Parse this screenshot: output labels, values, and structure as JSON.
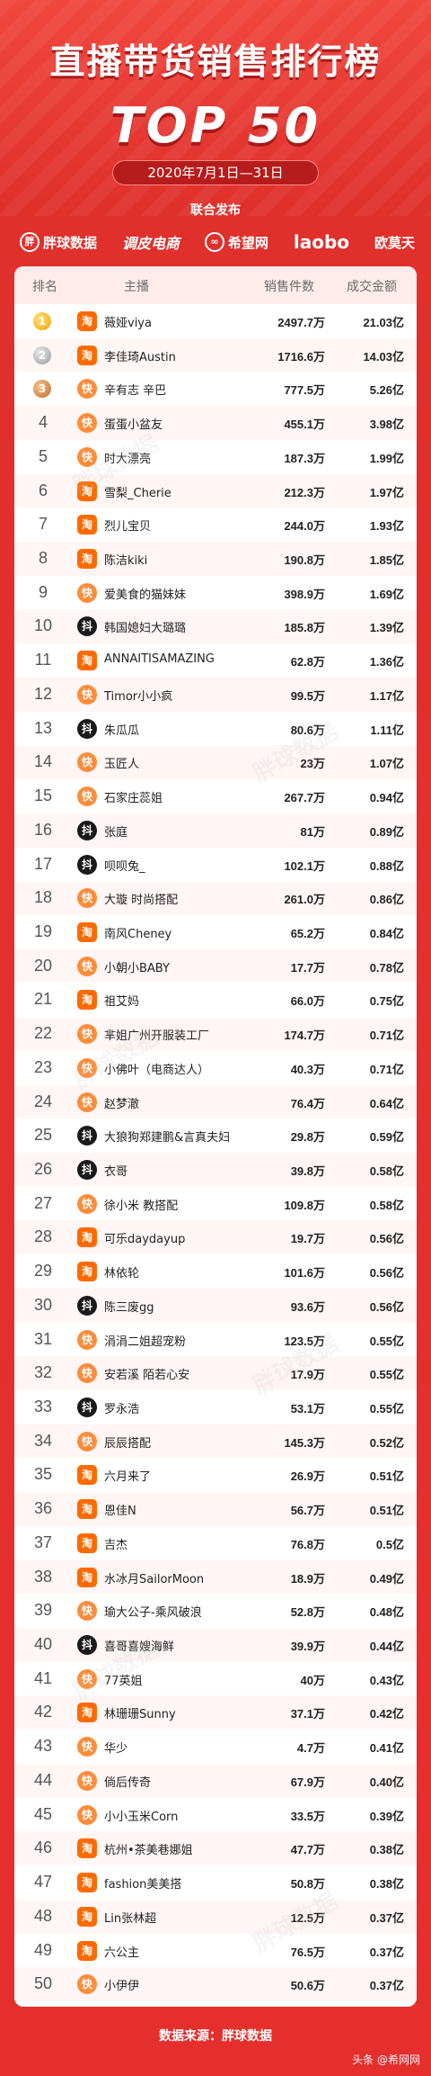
{
  "title": "直播带货销售排行榜",
  "subtitle": "TOP 50",
  "date_range": "2020年7月1日—31日",
  "joint_release_label": "联合发布",
  "logos": [
    "胖球数据",
    "调皮电商",
    "希望网",
    "laobo",
    "欧莫天"
  ],
  "table": {
    "headers": {
      "rank": "排名",
      "anchor": "主播",
      "sales": "销售件数",
      "gmv": "成交金额"
    },
    "rows": [
      {
        "rank": "1",
        "platform": "tb",
        "name": "薇娅viya",
        "sales": "2497.7万",
        "gmv": "21.03亿"
      },
      {
        "rank": "2",
        "platform": "tb",
        "name": "李佳琦Austin",
        "sales": "1716.6万",
        "gmv": "14.03亿"
      },
      {
        "rank": "3",
        "platform": "ks",
        "name": "辛有志 辛巴",
        "sales": "777.5万",
        "gmv": "5.26亿"
      },
      {
        "rank": "4",
        "platform": "ks",
        "name": "蛋蛋小盆友",
        "sales": "455.1万",
        "gmv": "3.98亿"
      },
      {
        "rank": "5",
        "platform": "ks",
        "name": "时大漂亮",
        "sales": "187.3万",
        "gmv": "1.99亿"
      },
      {
        "rank": "6",
        "platform": "tb",
        "name": "雪梨_Cherie",
        "sales": "212.3万",
        "gmv": "1.97亿"
      },
      {
        "rank": "7",
        "platform": "tb",
        "name": "烈儿宝贝",
        "sales": "244.0万",
        "gmv": "1.93亿"
      },
      {
        "rank": "8",
        "platform": "tb",
        "name": "陈洁kiki",
        "sales": "190.8万",
        "gmv": "1.85亿"
      },
      {
        "rank": "9",
        "platform": "ks",
        "name": "爱美食的猫妹妹",
        "sales": "398.9万",
        "gmv": "1.69亿"
      },
      {
        "rank": "10",
        "platform": "dy",
        "name": "韩国媳妇大璐璐",
        "sales": "185.8万",
        "gmv": "1.39亿"
      },
      {
        "rank": "11",
        "platform": "tb",
        "name": "ANNAITISAMAZING",
        "sales": "62.8万",
        "gmv": "1.36亿"
      },
      {
        "rank": "12",
        "platform": "ks",
        "name": "Timor小小疯",
        "sales": "99.5万",
        "gmv": "1.17亿"
      },
      {
        "rank": "13",
        "platform": "dy",
        "name": "朱瓜瓜",
        "sales": "80.6万",
        "gmv": "1.11亿"
      },
      {
        "rank": "14",
        "platform": "ks",
        "name": "玉匠人",
        "sales": "23万",
        "gmv": "1.07亿"
      },
      {
        "rank": "15",
        "platform": "ks",
        "name": "石家庄蕊姐",
        "sales": "267.7万",
        "gmv": "0.94亿"
      },
      {
        "rank": "16",
        "platform": "dy",
        "name": "张庭",
        "sales": "81万",
        "gmv": "0.89亿"
      },
      {
        "rank": "17",
        "platform": "dy",
        "name": "呗呗兔_",
        "sales": "102.1万",
        "gmv": "0.88亿"
      },
      {
        "rank": "18",
        "platform": "ks",
        "name": "大璇 时尚搭配",
        "sales": "261.0万",
        "gmv": "0.86亿"
      },
      {
        "rank": "19",
        "platform": "tb",
        "name": "南风Cheney",
        "sales": "65.2万",
        "gmv": "0.84亿"
      },
      {
        "rank": "20",
        "platform": "ks",
        "name": "小朝小BABY",
        "sales": "17.7万",
        "gmv": "0.78亿"
      },
      {
        "rank": "21",
        "platform": "tb",
        "name": "祖艾妈",
        "sales": "66.0万",
        "gmv": "0.75亿"
      },
      {
        "rank": "22",
        "platform": "ks",
        "name": "芈姐广州开服装工厂",
        "sales": "174.7万",
        "gmv": "0.71亿"
      },
      {
        "rank": "23",
        "platform": "ks",
        "name": "小佛叶（电商达人）",
        "sales": "40.3万",
        "gmv": "0.71亿"
      },
      {
        "rank": "24",
        "platform": "ks",
        "name": "赵梦澈",
        "sales": "76.4万",
        "gmv": "0.64亿"
      },
      {
        "rank": "25",
        "platform": "dy",
        "name": "大狼狗郑建鹏&言真夫妇",
        "sales": "29.8万",
        "gmv": "0.59亿"
      },
      {
        "rank": "26",
        "platform": "dy",
        "name": "衣哥",
        "sales": "39.8万",
        "gmv": "0.58亿"
      },
      {
        "rank": "27",
        "platform": "ks",
        "name": "徐小米 教搭配",
        "sales": "109.8万",
        "gmv": "0.58亿"
      },
      {
        "rank": "28",
        "platform": "tb",
        "name": "可乐daydayup",
        "sales": "19.7万",
        "gmv": "0.56亿"
      },
      {
        "rank": "29",
        "platform": "tb",
        "name": "林依轮",
        "sales": "101.6万",
        "gmv": "0.56亿"
      },
      {
        "rank": "30",
        "platform": "dy",
        "name": "陈三废gg",
        "sales": "93.6万",
        "gmv": "0.56亿"
      },
      {
        "rank": "31",
        "platform": "ks",
        "name": "涓涓二姐超宠粉",
        "sales": "123.5万",
        "gmv": "0.55亿"
      },
      {
        "rank": "32",
        "platform": "ks",
        "name": "安若溪 陌若心安",
        "sales": "17.9万",
        "gmv": "0.55亿"
      },
      {
        "rank": "33",
        "platform": "dy",
        "name": "罗永浩",
        "sales": "53.1万",
        "gmv": "0.55亿"
      },
      {
        "rank": "34",
        "platform": "ks",
        "name": "辰辰搭配",
        "sales": "145.3万",
        "gmv": "0.52亿"
      },
      {
        "rank": "35",
        "platform": "tb",
        "name": "六月来了",
        "sales": "26.9万",
        "gmv": "0.51亿"
      },
      {
        "rank": "36",
        "platform": "tb",
        "name": "恩佳N",
        "sales": "56.7万",
        "gmv": "0.51亿"
      },
      {
        "rank": "37",
        "platform": "tb",
        "name": "吉杰",
        "sales": "76.8万",
        "gmv": "0.5亿"
      },
      {
        "rank": "38",
        "platform": "tb",
        "name": "水冰月SailorMoon",
        "sales": "18.9万",
        "gmv": "0.49亿"
      },
      {
        "rank": "39",
        "platform": "ks",
        "name": "瑜大公子-乘风破浪",
        "sales": "52.8万",
        "gmv": "0.48亿"
      },
      {
        "rank": "40",
        "platform": "dy",
        "name": "喜哥喜嫂海鲜",
        "sales": "39.9万",
        "gmv": "0.44亿"
      },
      {
        "rank": "41",
        "platform": "ks",
        "name": "77英姐",
        "sales": "40万",
        "gmv": "0.43亿"
      },
      {
        "rank": "42",
        "platform": "tb",
        "name": "林珊珊Sunny",
        "sales": "37.1万",
        "gmv": "0.42亿"
      },
      {
        "rank": "43",
        "platform": "ks",
        "name": "华少",
        "sales": "4.7万",
        "gmv": "0.41亿"
      },
      {
        "rank": "44",
        "platform": "ks",
        "name": "倘后传奇",
        "sales": "67.9万",
        "gmv": "0.40亿"
      },
      {
        "rank": "45",
        "platform": "ks",
        "name": "小小玉米Corn",
        "sales": "33.5万",
        "gmv": "0.39亿"
      },
      {
        "rank": "46",
        "platform": "tb",
        "name": "杭州•茶美巷娜姐",
        "sales": "47.7万",
        "gmv": "0.38亿"
      },
      {
        "rank": "47",
        "platform": "tb",
        "name": "fashion美美搭",
        "sales": "50.8万",
        "gmv": "0.38亿"
      },
      {
        "rank": "48",
        "platform": "tb",
        "name": "Lin张林超",
        "sales": "12.5万",
        "gmv": "0.37亿"
      },
      {
        "rank": "49",
        "platform": "tb",
        "name": "六公主",
        "sales": "76.5万",
        "gmv": "0.37亿"
      },
      {
        "rank": "50",
        "platform": "ks",
        "name": "小伊伊",
        "sales": "50.6万",
        "gmv": "0.37亿"
      }
    ]
  },
  "platform_icons": {
    "tb": "淘",
    "ks": "快",
    "dy": "抖"
  },
  "watermark_text": "胖球数据",
  "data_source": "数据来源：胖球数据",
  "credit": "头条 @希网网",
  "colors": {
    "background": "#e3312e",
    "header_row": "#fdecea",
    "taobao": "#ff6a00",
    "kuaishou": "#ff8c3a",
    "douyin": "#1a1a1a"
  }
}
